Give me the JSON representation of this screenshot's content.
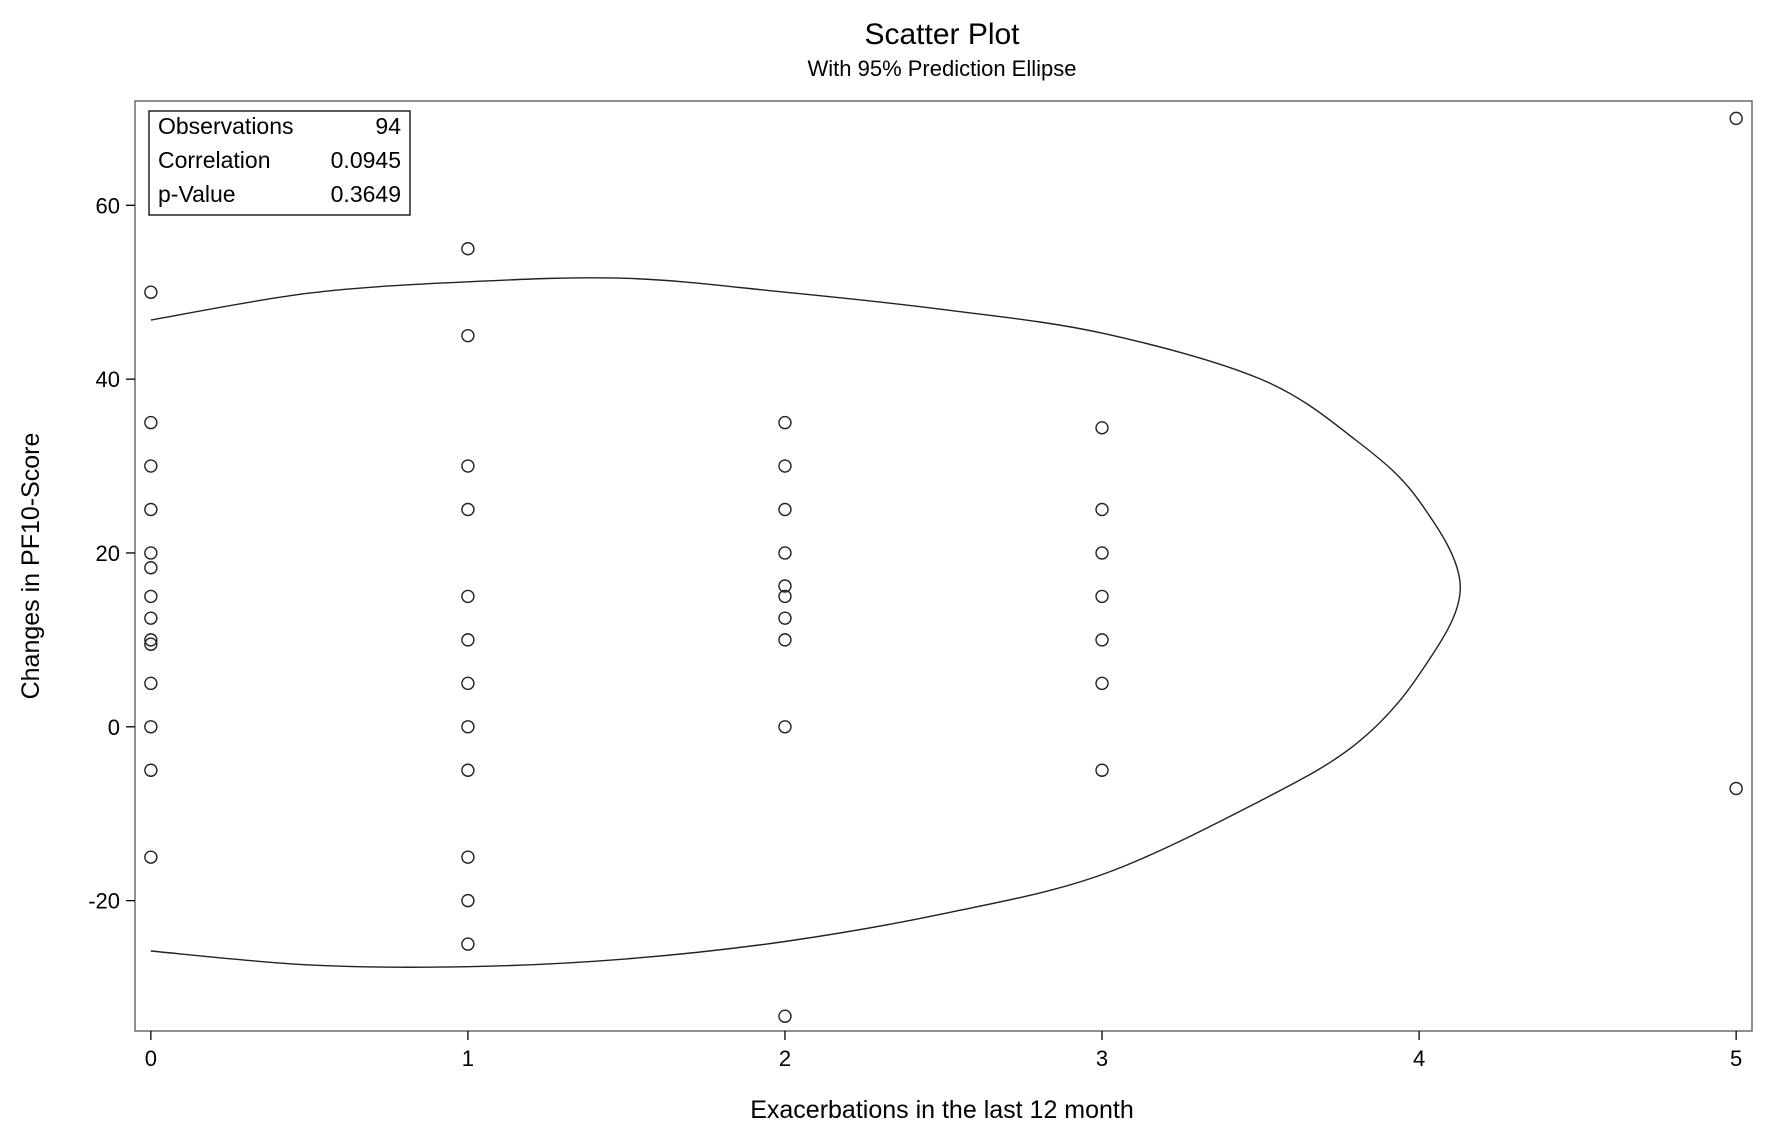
{
  "chart_data": {
    "type": "scatter",
    "title": "Scatter Plot",
    "subtitle": "With 95% Prediction Ellipse",
    "xlabel": "Exacerbations in the last 12 month",
    "ylabel": "Changes in PF10-Score",
    "xlim": [
      -0.05,
      5.05
    ],
    "ylim": [
      -35,
      72
    ],
    "x_ticks": [
      0,
      1,
      2,
      3,
      4,
      5
    ],
    "y_ticks": [
      -20,
      0,
      20,
      40,
      60
    ],
    "grid": false,
    "marker": "open-circle",
    "stats": [
      {
        "label": "Observations",
        "value": "94"
      },
      {
        "label": "Correlation",
        "value": "0.0945"
      },
      {
        "label": "p-Value",
        "value": "0.3649"
      }
    ],
    "stats_position": "top-left",
    "points": [
      {
        "x": 0,
        "y": 50
      },
      {
        "x": 0,
        "y": 35
      },
      {
        "x": 0,
        "y": 30
      },
      {
        "x": 0,
        "y": 25
      },
      {
        "x": 0,
        "y": 20
      },
      {
        "x": 0,
        "y": 18.3
      },
      {
        "x": 0,
        "y": 15
      },
      {
        "x": 0,
        "y": 12.5
      },
      {
        "x": 0,
        "y": 10
      },
      {
        "x": 0,
        "y": 9.5
      },
      {
        "x": 0,
        "y": 5
      },
      {
        "x": 0,
        "y": 0
      },
      {
        "x": 0,
        "y": -5
      },
      {
        "x": 0,
        "y": -15
      },
      {
        "x": 1,
        "y": 55
      },
      {
        "x": 1,
        "y": 45
      },
      {
        "x": 1,
        "y": 30
      },
      {
        "x": 1,
        "y": 25
      },
      {
        "x": 1,
        "y": 15
      },
      {
        "x": 1,
        "y": 10
      },
      {
        "x": 1,
        "y": 5
      },
      {
        "x": 1,
        "y": 0
      },
      {
        "x": 1,
        "y": -5
      },
      {
        "x": 1,
        "y": -15
      },
      {
        "x": 1,
        "y": -20
      },
      {
        "x": 1,
        "y": -25
      },
      {
        "x": 2,
        "y": 35
      },
      {
        "x": 2,
        "y": 30
      },
      {
        "x": 2,
        "y": 25
      },
      {
        "x": 2,
        "y": 20
      },
      {
        "x": 2,
        "y": 16.2
      },
      {
        "x": 2,
        "y": 15
      },
      {
        "x": 2,
        "y": 12.5
      },
      {
        "x": 2,
        "y": 10
      },
      {
        "x": 2,
        "y": 0
      },
      {
        "x": 2,
        "y": -33.3
      },
      {
        "x": 3,
        "y": 34.4
      },
      {
        "x": 3,
        "y": 25
      },
      {
        "x": 3,
        "y": 20
      },
      {
        "x": 3,
        "y": 15
      },
      {
        "x": 3,
        "y": 10
      },
      {
        "x": 3,
        "y": 5
      },
      {
        "x": 3,
        "y": -5
      },
      {
        "x": 5,
        "y": 70
      },
      {
        "x": 5,
        "y": -7.1
      }
    ],
    "ellipse": {
      "label": "95% Prediction Ellipse",
      "points": [
        [
          0.0,
          46.8
        ],
        [
          0.5,
          49.9
        ],
        [
          1.0,
          51.2
        ],
        [
          1.5,
          51.6
        ],
        [
          2.0,
          50.0
        ],
        [
          2.5,
          48.0
        ],
        [
          3.0,
          45.3
        ],
        [
          3.5,
          40.0
        ],
        [
          3.8,
          33.0
        ],
        [
          4.0,
          26.0
        ],
        [
          4.13,
          16.0
        ],
        [
          4.0,
          6.0
        ],
        [
          3.8,
          -2.0
        ],
        [
          3.5,
          -8.5
        ],
        [
          3.0,
          -17.0
        ],
        [
          2.5,
          -21.5
        ],
        [
          2.0,
          -24.7
        ],
        [
          1.5,
          -26.7
        ],
        [
          1.0,
          -27.6
        ],
        [
          0.5,
          -27.4
        ],
        [
          0.0,
          -25.8
        ]
      ]
    }
  }
}
